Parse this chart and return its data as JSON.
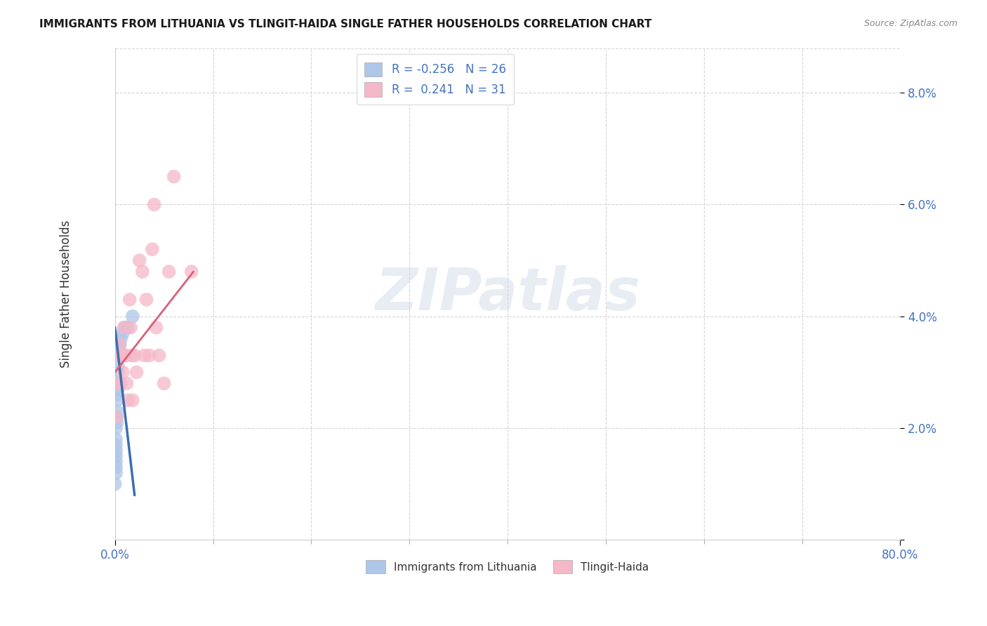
{
  "title": "IMMIGRANTS FROM LITHUANIA VS TLINGIT-HAIDA SINGLE FATHER HOUSEHOLDS CORRELATION CHART",
  "source": "Source: ZipAtlas.com",
  "ylabel": "Single Father Households",
  "legend_labels": [
    "Immigrants from Lithuania",
    "Tlingit-Haida"
  ],
  "blue_R": -0.256,
  "blue_N": 26,
  "pink_R": 0.241,
  "pink_N": 31,
  "blue_color": "#aec6e8",
  "pink_color": "#f5b8c8",
  "blue_line_color": "#3a6fb0",
  "pink_line_color": "#d9607a",
  "watermark": "ZIPatlas",
  "blue_scatter_x": [
    0.0,
    0.001,
    0.001,
    0.001,
    0.001,
    0.001,
    0.001,
    0.001,
    0.001,
    0.002,
    0.002,
    0.002,
    0.002,
    0.002,
    0.003,
    0.003,
    0.003,
    0.003,
    0.004,
    0.004,
    0.005,
    0.006,
    0.008,
    0.01,
    0.013,
    0.018
  ],
  "blue_scatter_y": [
    0.01,
    0.012,
    0.013,
    0.014,
    0.015,
    0.016,
    0.017,
    0.018,
    0.02,
    0.021,
    0.022,
    0.023,
    0.025,
    0.026,
    0.027,
    0.028,
    0.03,
    0.031,
    0.033,
    0.034,
    0.035,
    0.036,
    0.037,
    0.038,
    0.038,
    0.04
  ],
  "pink_scatter_x": [
    0.002,
    0.003,
    0.004,
    0.005,
    0.006,
    0.007,
    0.008,
    0.009,
    0.01,
    0.011,
    0.012,
    0.013,
    0.015,
    0.016,
    0.017,
    0.018,
    0.02,
    0.022,
    0.025,
    0.028,
    0.03,
    0.032,
    0.035,
    0.038,
    0.04,
    0.042,
    0.045,
    0.05,
    0.055,
    0.06,
    0.078
  ],
  "pink_scatter_y": [
    0.022,
    0.028,
    0.033,
    0.035,
    0.028,
    0.033,
    0.03,
    0.038,
    0.033,
    0.033,
    0.028,
    0.025,
    0.043,
    0.038,
    0.033,
    0.025,
    0.033,
    0.03,
    0.05,
    0.048,
    0.033,
    0.043,
    0.033,
    0.052,
    0.06,
    0.038,
    0.033,
    0.028,
    0.048,
    0.065,
    0.048
  ],
  "blue_line_x": [
    0.0,
    0.02
  ],
  "blue_line_y": [
    0.038,
    0.008
  ],
  "pink_line_x": [
    0.0,
    0.08
  ],
  "pink_line_y": [
    0.03,
    0.048
  ],
  "xlim": [
    0.0,
    0.8
  ],
  "ylim": [
    0.0,
    0.088
  ],
  "xtick_positions": [
    0.0,
    0.8
  ],
  "xtick_labels": [
    "0.0%",
    "80.0%"
  ],
  "ytick_positions": [
    0.0,
    0.02,
    0.04,
    0.06,
    0.08
  ],
  "ytick_labels": [
    "",
    "2.0%",
    "4.0%",
    "6.0%",
    "8.0%"
  ],
  "background_color": "#ffffff",
  "grid_color": "#cccccc",
  "tick_color": "#4472c4",
  "title_color": "#1a1a1a",
  "source_color": "#888888"
}
